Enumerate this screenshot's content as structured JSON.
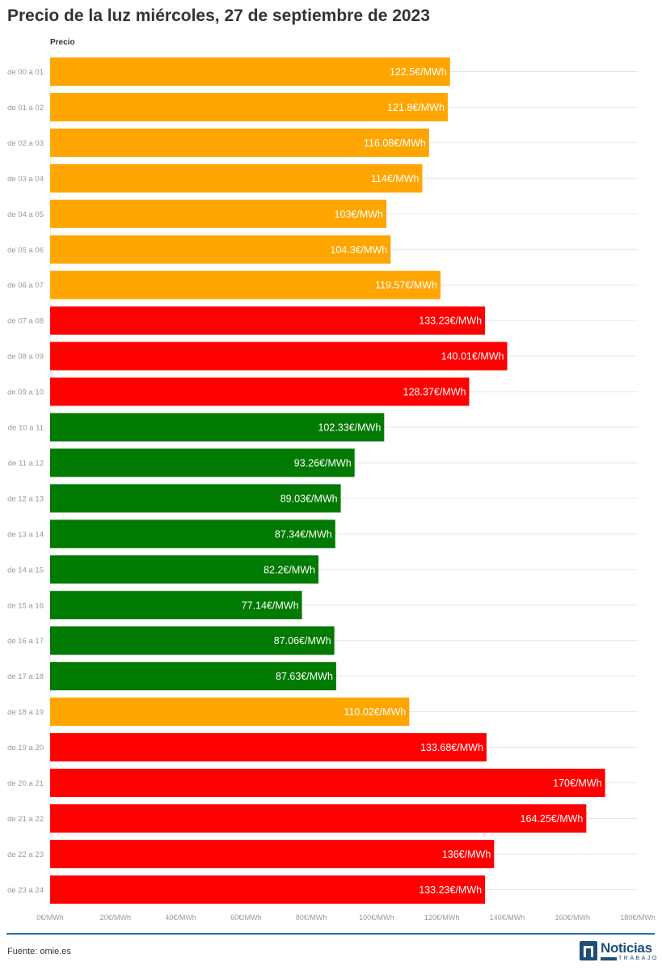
{
  "chart_data": {
    "type": "bar",
    "orientation": "horizontal",
    "title": "Precio de la luz miércoles, 27 de septiembre de 2023",
    "series_name": "Precio",
    "categories": [
      "de 00 a 01",
      "de 01 a 02",
      "de 02 a 03",
      "de 03 a 04",
      "de 04 a 05",
      "de 05 a 06",
      "de 06 a 07",
      "de 07 a 08",
      "de 08 a 09",
      "de 09 a 10",
      "de 10 a 11",
      "de 11 a 12",
      "de 12 a 13",
      "de 13 a 14",
      "de 14 a 15",
      "de 15 a 16",
      "de 16 a 17",
      "de 17 a 18",
      "de 18 a 19",
      "de 19 a 20",
      "de 20 a 21",
      "de 21 a 22",
      "de 22 a 23",
      "de 23 a 24"
    ],
    "values": [
      122.5,
      121.8,
      116.08,
      114,
      103,
      104.3,
      119.57,
      133.23,
      140.01,
      128.37,
      102.33,
      93.26,
      89.03,
      87.34,
      82.2,
      77.14,
      87.06,
      87.63,
      110.02,
      133.68,
      170,
      164.25,
      136,
      133.23
    ],
    "data_labels": [
      "122.5€/MWh",
      "121.8€/MWh",
      "116.08€/MWh",
      "114€/MWh",
      "103€/MWh",
      "104.3€/MWh",
      "119.57€/MWh",
      "133.23€/MWh",
      "140.01€/MWh",
      "128.37€/MWh",
      "102.33€/MWh",
      "93.26€/MWh",
      "89.03€/MWh",
      "87.34€/MWh",
      "82.2€/MWh",
      "77.14€/MWh",
      "87.06€/MWh",
      "87.63€/MWh",
      "110.02€/MWh",
      "133.68€/MWh",
      "170€/MWh",
      "164.25€/MWh",
      "136€/MWh",
      "133.23€/MWh"
    ],
    "bar_colors": [
      "#ffa500",
      "#ffa500",
      "#ffa500",
      "#ffa500",
      "#ffa500",
      "#ffa500",
      "#ffa500",
      "#ff0000",
      "#ff0000",
      "#ff0000",
      "#007a00",
      "#007a00",
      "#007a00",
      "#007a00",
      "#007a00",
      "#007a00",
      "#007a00",
      "#007a00",
      "#ffa500",
      "#ff0000",
      "#ff0000",
      "#ff0000",
      "#ff0000",
      "#ff0000"
    ],
    "xlim": [
      0,
      180
    ],
    "x_ticks": [
      0,
      20,
      40,
      60,
      80,
      100,
      120,
      140,
      160,
      180
    ],
    "x_tick_labels": [
      "0€/MWh",
      "20€/MWh",
      "40€/MWh",
      "60€/MWh",
      "80€/MWh",
      "100€/MWh",
      "120€/MWh",
      "140€/MWh",
      "160€/MWh",
      "180€/MWh"
    ],
    "grid": true,
    "legend": "none"
  },
  "footer": {
    "source": "Fuente: omie.es",
    "logo_name": "Noticias",
    "logo_sub": "TRABAJO"
  },
  "colors": {
    "orange": "#ffa500",
    "red": "#ff0000",
    "green": "#007a00",
    "brand": "#1f4e79"
  }
}
